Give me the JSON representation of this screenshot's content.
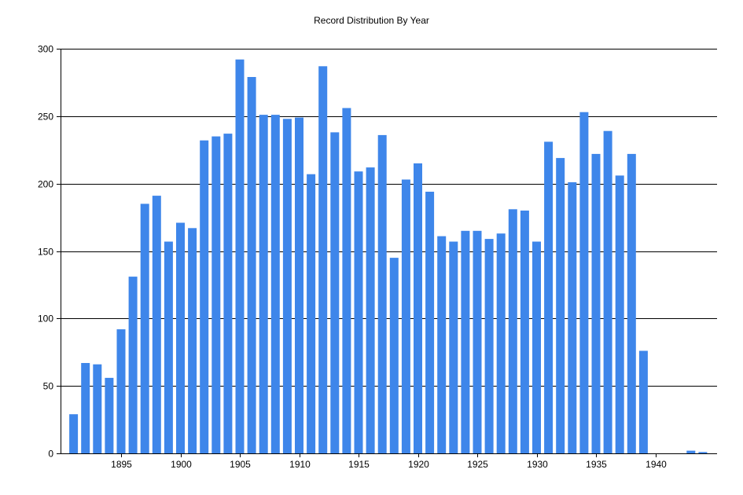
{
  "chart_data": {
    "type": "bar",
    "title": "Record Distribution By Year",
    "xlabel": "",
    "ylabel": "",
    "bar_color": "#3e86ea",
    "ylim": [
      0,
      300
    ],
    "xlim": [
      1890,
      1945
    ],
    "y_ticks": [
      "0",
      "50",
      "100",
      "150",
      "200",
      "250",
      "300"
    ],
    "x_ticks": [
      "1895",
      "1900",
      "1905",
      "1910",
      "1915",
      "1920",
      "1925",
      "1930",
      "1935",
      "1940"
    ],
    "grid": true,
    "x": [
      1891,
      1892,
      1893,
      1894,
      1895,
      1896,
      1897,
      1898,
      1899,
      1900,
      1901,
      1902,
      1903,
      1904,
      1905,
      1906,
      1907,
      1908,
      1909,
      1910,
      1911,
      1912,
      1913,
      1914,
      1915,
      1916,
      1917,
      1918,
      1919,
      1920,
      1921,
      1922,
      1923,
      1924,
      1925,
      1926,
      1927,
      1928,
      1929,
      1930,
      1931,
      1932,
      1933,
      1934,
      1935,
      1936,
      1937,
      1938,
      1939,
      1943,
      1944
    ],
    "values": [
      29,
      67,
      66,
      56,
      92,
      131,
      185,
      191,
      157,
      171,
      167,
      232,
      235,
      237,
      292,
      279,
      251,
      251,
      248,
      249,
      207,
      287,
      238,
      256,
      209,
      212,
      236,
      145,
      203,
      215,
      194,
      161,
      157,
      165,
      165,
      159,
      163,
      181,
      180,
      157,
      231,
      219,
      201,
      253,
      222,
      239,
      206,
      222,
      76,
      2,
      1
    ]
  }
}
